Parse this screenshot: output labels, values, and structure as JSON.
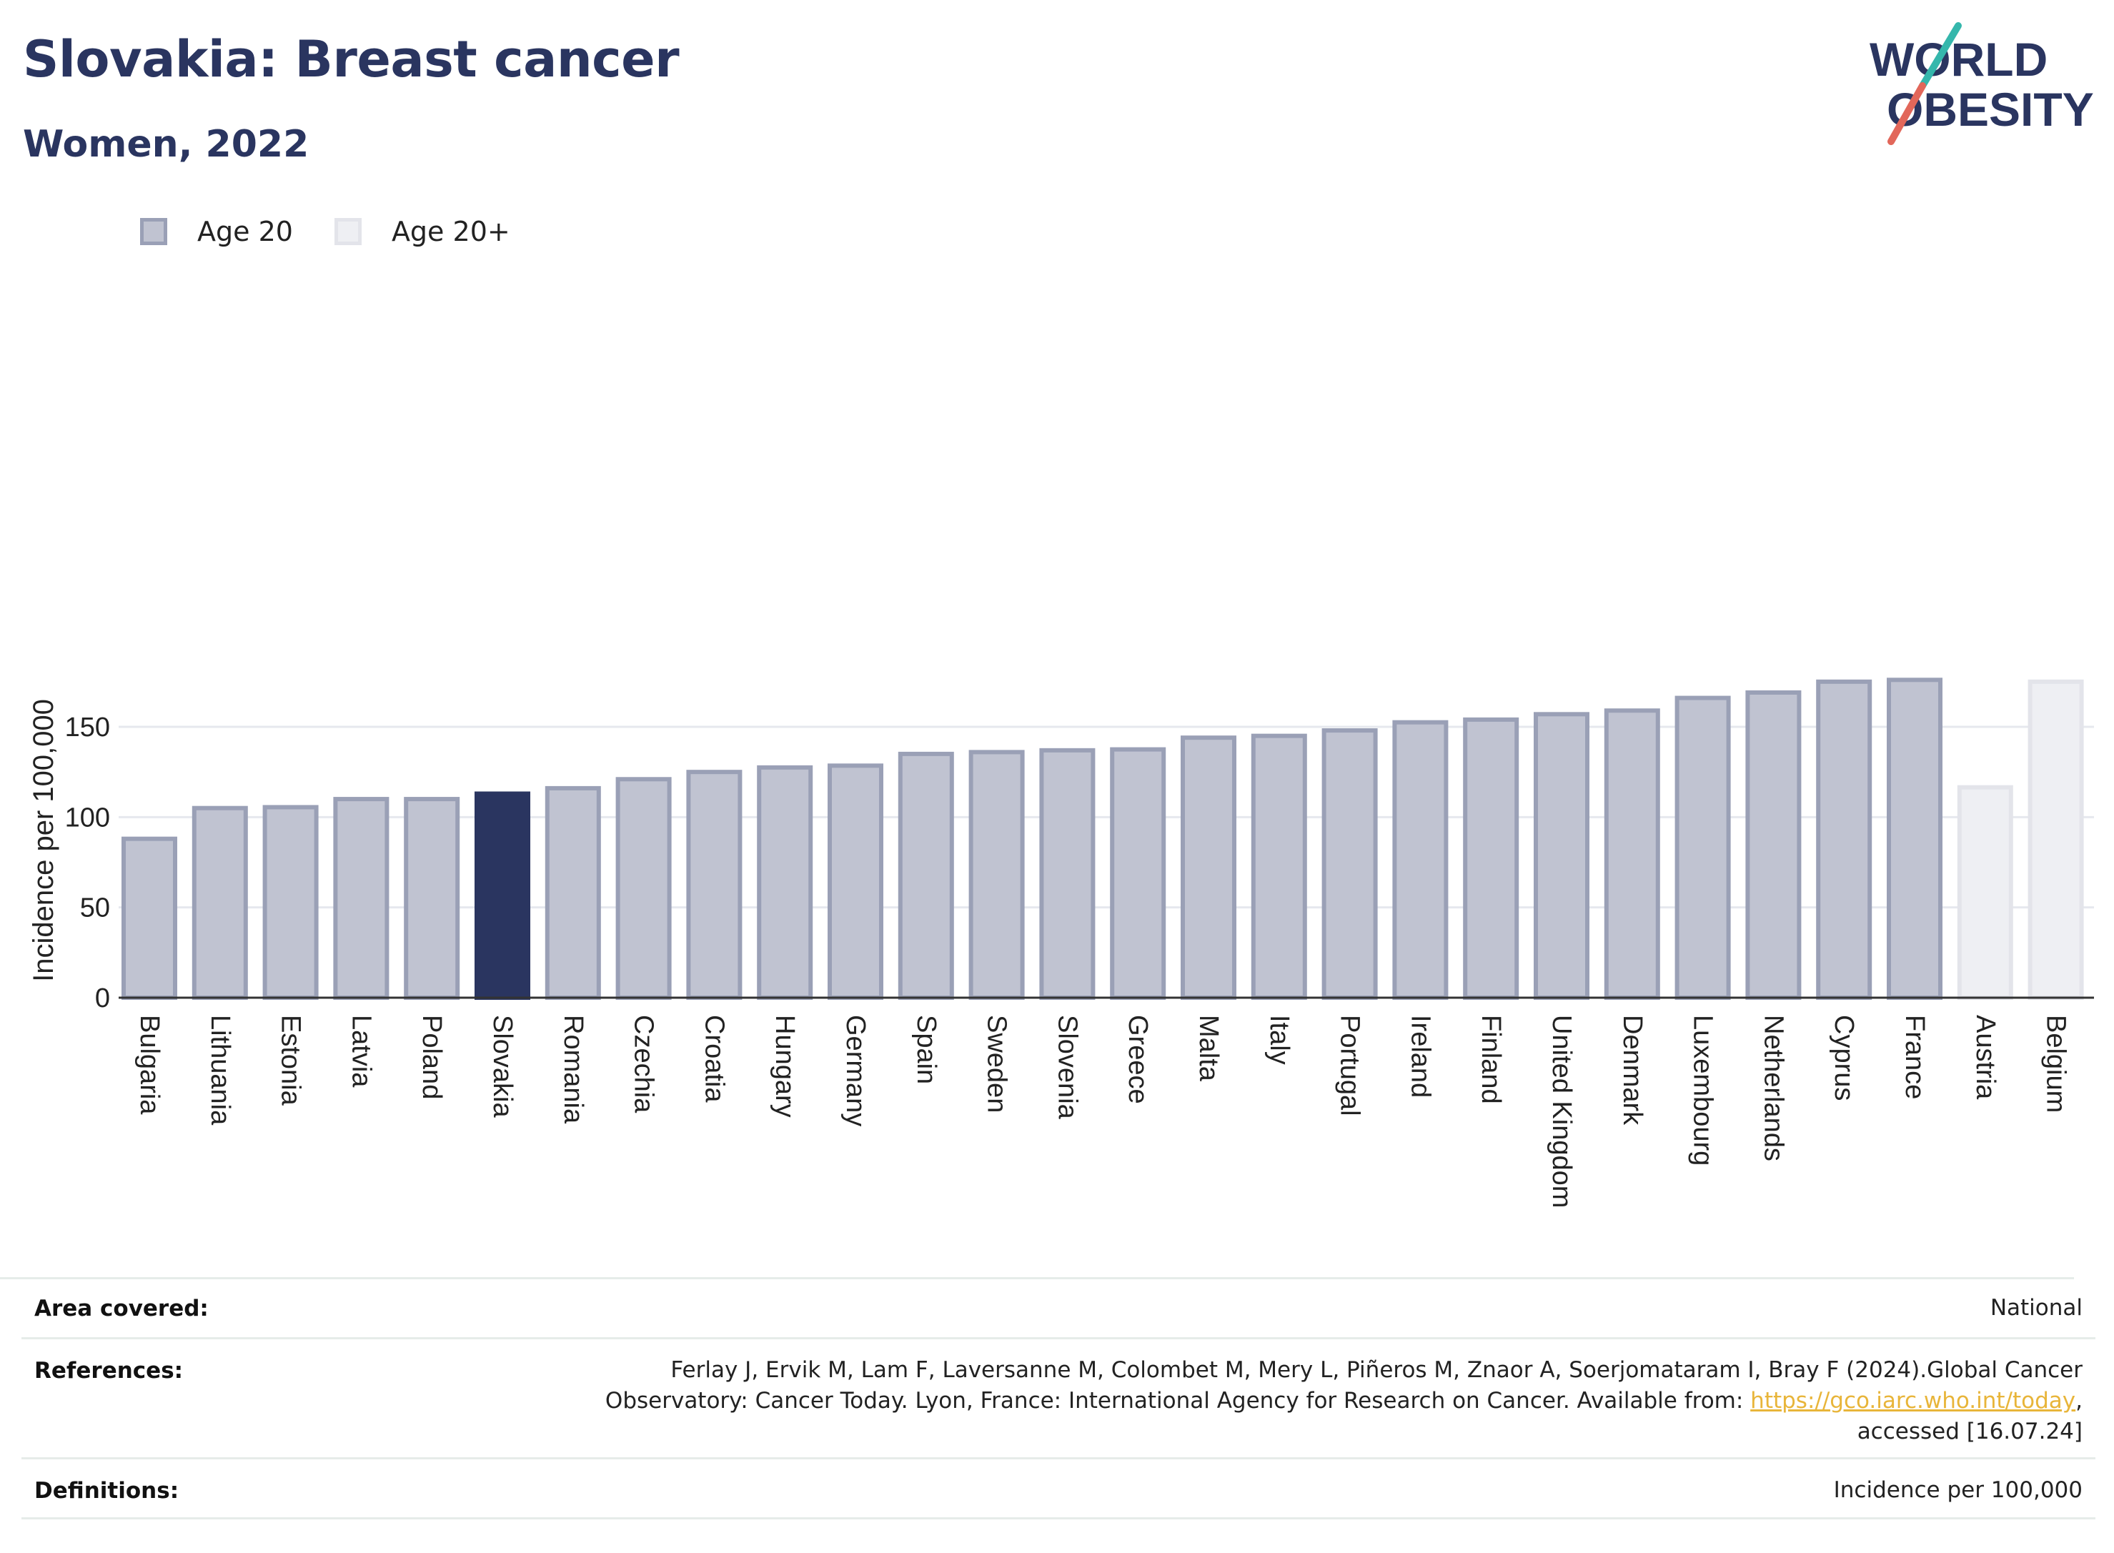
{
  "header": {
    "title": "Slovakia: Breast cancer",
    "subtitle": "Women, 2022"
  },
  "logo": {
    "line1": "WORLD",
    "line2": "OBESITY",
    "accent_teal": "#35b7ac",
    "accent_coral": "#e2675a"
  },
  "legend": {
    "items": [
      {
        "label": "Age 20",
        "color": "#c0c3d1"
      },
      {
        "label": "Age 20+",
        "color": "#eeeff3"
      }
    ]
  },
  "colors": {
    "highlight": "#2a3560",
    "age20": "#c0c3d1",
    "age20_border": "#9aa0b6",
    "age20plus": "#eeeff3",
    "age20plus_border": "#e3e4ea"
  },
  "chart_data": {
    "type": "bar",
    "ylabel": "Incidence per 100,000",
    "ylim": [
      0,
      190
    ],
    "yticks": [
      0,
      50,
      100,
      150
    ],
    "grid": true,
    "legend_placement": "top-left",
    "highlight": "Slovakia",
    "categories": [
      "Bulgaria",
      "Lithuania",
      "Estonia",
      "Latvia",
      "Poland",
      "Slovakia",
      "Romania",
      "Czechia",
      "Croatia",
      "Hungary",
      "Germany",
      "Spain",
      "Sweden",
      "Slovenia",
      "Greece",
      "Malta",
      "Italy",
      "Portugal",
      "Ireland",
      "Finland",
      "United Kingdom",
      "Denmark",
      "Luxembourg",
      "Netherlands",
      "Cyprus",
      "France",
      "Austria",
      "Belgium"
    ],
    "values": [
      88,
      105,
      105.5,
      110,
      110,
      113,
      116,
      121,
      125,
      127.5,
      128.5,
      135,
      136,
      137,
      137.5,
      144,
      145,
      148,
      152.5,
      154,
      157,
      159,
      166,
      169,
      175,
      176,
      116.5,
      175
    ],
    "series_group": [
      "Age 20",
      "Age 20",
      "Age 20",
      "Age 20",
      "Age 20",
      "Age 20",
      "Age 20",
      "Age 20",
      "Age 20",
      "Age 20",
      "Age 20",
      "Age 20",
      "Age 20",
      "Age 20",
      "Age 20",
      "Age 20",
      "Age 20",
      "Age 20",
      "Age 20",
      "Age 20",
      "Age 20",
      "Age 20",
      "Age 20",
      "Age 20",
      "Age 20",
      "Age 20",
      "Age 20+",
      "Age 20+"
    ]
  },
  "footer": {
    "area": {
      "key": "Area covered:",
      "value": "National"
    },
    "references": {
      "key": "References:",
      "line1": "Ferlay J, Ervik M, Lam F, Laversanne M, Colombet M, Mery L, Piñeros M, Znaor A, Soerjomataram I, Bray F (2024).Global Cancer",
      "line2_prefix": "Observatory: Cancer Today. Lyon, France: International Agency for Research on Cancer. Available from: ",
      "link": "https://gco.iarc.who.int/today",
      "line2_suffix": ",",
      "line3": "accessed [16.07.24]"
    },
    "definitions": {
      "key": "Definitions:",
      "value": "Incidence per 100,000"
    }
  }
}
